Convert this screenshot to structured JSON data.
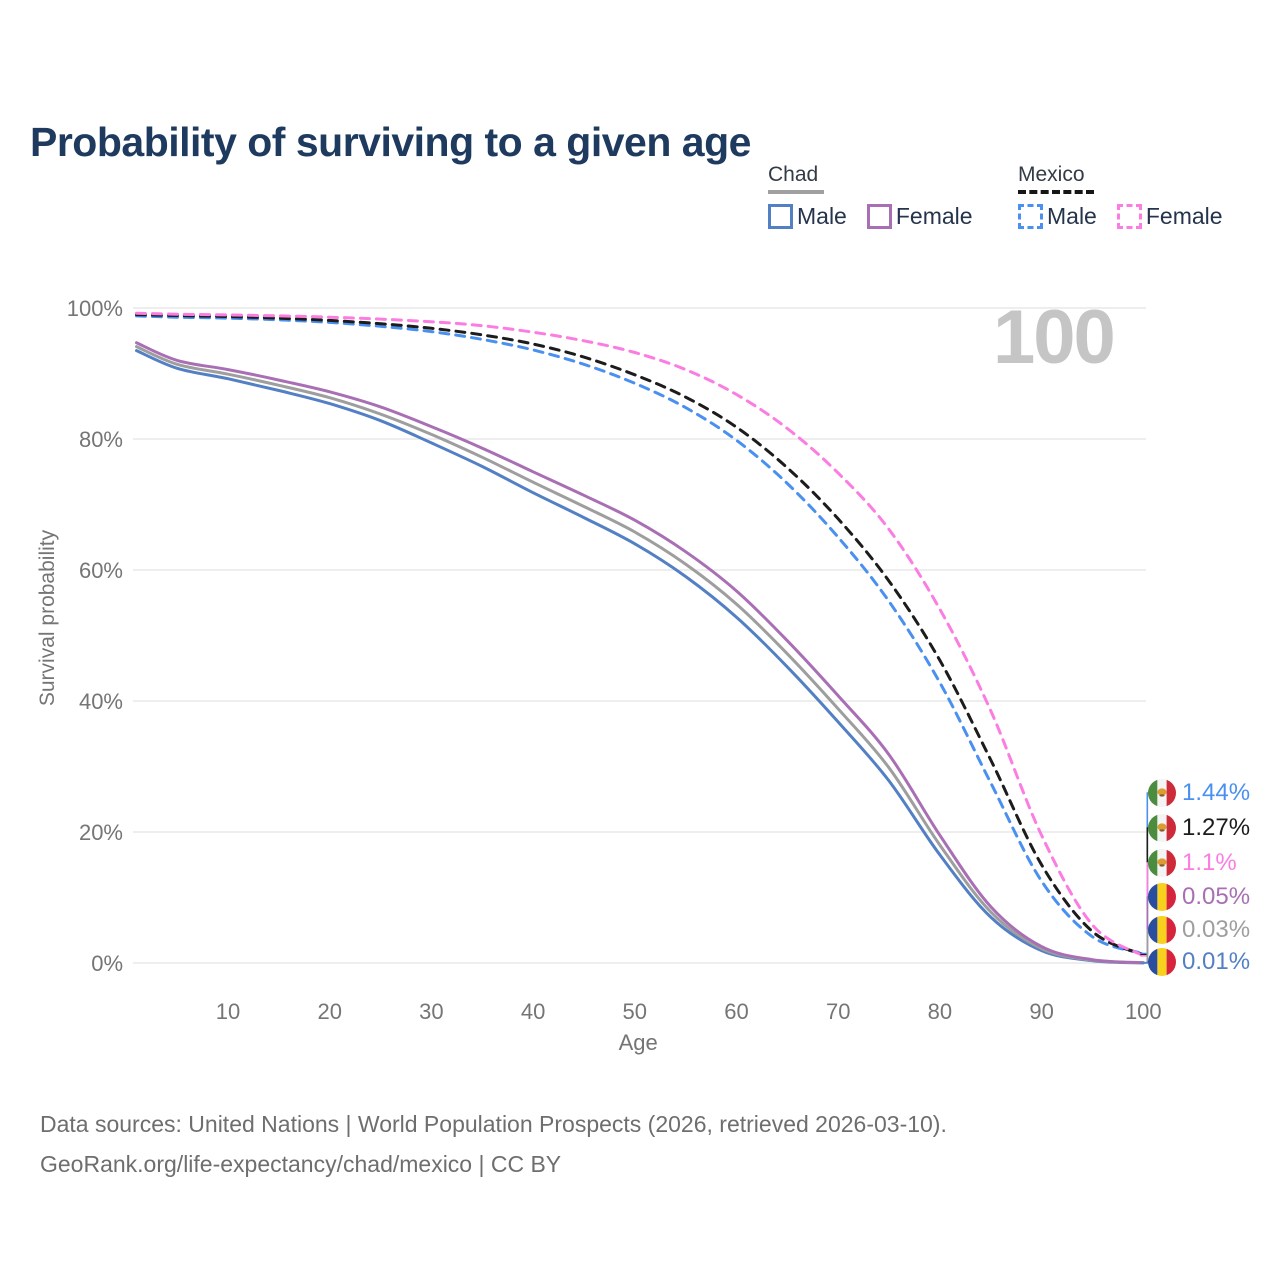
{
  "title": "Probability of surviving to a given age",
  "watermark": "100",
  "legend": {
    "groups": [
      {
        "country": "Chad",
        "line_style": "solid",
        "underline_color": "#a0a0a0",
        "items": [
          {
            "label": "Male",
            "color": "#5380c4"
          },
          {
            "label": "Female",
            "color": "#a96fb4"
          }
        ]
      },
      {
        "country": "Mexico",
        "line_style": "dashed",
        "underline_color": "#161616",
        "items": [
          {
            "label": "Male",
            "color": "#4a90f0"
          },
          {
            "label": "Female",
            "color": "#fb7de2"
          }
        ]
      }
    ]
  },
  "chart_data": {
    "type": "line",
    "title": "Probability of surviving to a given age",
    "xlabel": "Age",
    "ylabel": "Survival probability",
    "xlim": [
      0,
      100
    ],
    "ylim": [
      0,
      100
    ],
    "grid": "horizontal",
    "x_ticks": [
      10,
      20,
      30,
      40,
      50,
      60,
      70,
      80,
      90,
      100
    ],
    "y_ticks": [
      0,
      20,
      40,
      60,
      80,
      100
    ],
    "y_tick_suffix": "%",
    "ages": [
      1,
      5,
      10,
      15,
      20,
      25,
      30,
      35,
      40,
      45,
      50,
      55,
      60,
      65,
      70,
      75,
      80,
      85,
      90,
      95,
      100
    ],
    "series": [
      {
        "name": "Chad Male",
        "country": "chad",
        "sex": "male",
        "style": "solid",
        "color": "#5380c4",
        "values": [
          93.5,
          90.8,
          89.2,
          87.4,
          85.4,
          82.8,
          79.4,
          75.8,
          71.8,
          68.0,
          64.0,
          59.0,
          52.8,
          45.2,
          36.8,
          27.8,
          16.5,
          7.0,
          1.9,
          0.35,
          0.01
        ]
      },
      {
        "name": "Chad Both sexes",
        "country": "chad",
        "sex": "both",
        "style": "solid",
        "color": "#9e9e9e",
        "values": [
          94.1,
          91.4,
          89.9,
          88.2,
          86.3,
          83.8,
          80.7,
          77.2,
          73.4,
          69.7,
          65.8,
          60.9,
          54.8,
          47.2,
          38.8,
          29.8,
          18.0,
          7.8,
          2.2,
          0.42,
          0.03
        ]
      },
      {
        "name": "Chad Female",
        "country": "chad",
        "sex": "female",
        "style": "solid",
        "color": "#a96fb4",
        "values": [
          94.7,
          92.0,
          90.6,
          89.0,
          87.2,
          84.9,
          81.9,
          78.6,
          75.0,
          71.4,
          67.6,
          62.8,
          56.8,
          49.2,
          40.8,
          31.8,
          19.5,
          8.6,
          2.5,
          0.5,
          0.05
        ]
      },
      {
        "name": "Mexico Male",
        "country": "mexico",
        "sex": "male",
        "style": "dashed",
        "color": "#4a90f0",
        "values": [
          98.8,
          98.6,
          98.45,
          98.2,
          97.8,
          97.2,
          96.4,
          95.2,
          93.6,
          91.4,
          88.5,
          84.8,
          79.8,
          73.2,
          65.0,
          55.2,
          42.8,
          27.5,
          12.5,
          4.0,
          1.44
        ]
      },
      {
        "name": "Mexico Both sexes",
        "country": "mexico",
        "sex": "both",
        "style": "dashed",
        "color": "#1c1c1c",
        "values": [
          99.0,
          98.85,
          98.7,
          98.45,
          98.1,
          97.6,
          96.9,
          95.9,
          94.5,
          92.5,
          89.8,
          86.4,
          81.8,
          75.6,
          67.8,
          58.3,
          46.2,
          31.0,
          15.0,
          4.8,
          1.27
        ]
      },
      {
        "name": "Mexico Female",
        "country": "mexico",
        "sex": "female",
        "style": "dashed",
        "color": "#fb7de2",
        "values": [
          99.2,
          99.05,
          98.95,
          98.8,
          98.6,
          98.3,
          97.9,
          97.3,
          96.3,
          95.0,
          93.2,
          90.6,
          86.8,
          81.6,
          74.8,
          66.2,
          54.0,
          38.5,
          19.5,
          5.8,
          1.1
        ]
      }
    ],
    "end_labels": [
      {
        "series_index": 3,
        "flag": "mexico",
        "text": "1.44%",
        "color": "#4a90f0"
      },
      {
        "series_index": 4,
        "flag": "mexico",
        "text": "1.27%",
        "color": "#1c1c1c"
      },
      {
        "series_index": 5,
        "flag": "mexico",
        "text": "1.1%",
        "color": "#fb7de2"
      },
      {
        "series_index": 2,
        "flag": "chad",
        "text": "0.05%",
        "color": "#a96fb4"
      },
      {
        "series_index": 1,
        "flag": "chad",
        "text": "0.03%",
        "color": "#9e9e9e"
      },
      {
        "series_index": 0,
        "flag": "chad",
        "text": "0.01%",
        "color": "#5380c4"
      }
    ]
  },
  "footer": {
    "line1": "Data sources: United Nations | World Population Prospects (2026, retrieved 2026-03-10).",
    "line2": "GeoRank.org/life-expectancy/chad/mexico | CC BY"
  }
}
